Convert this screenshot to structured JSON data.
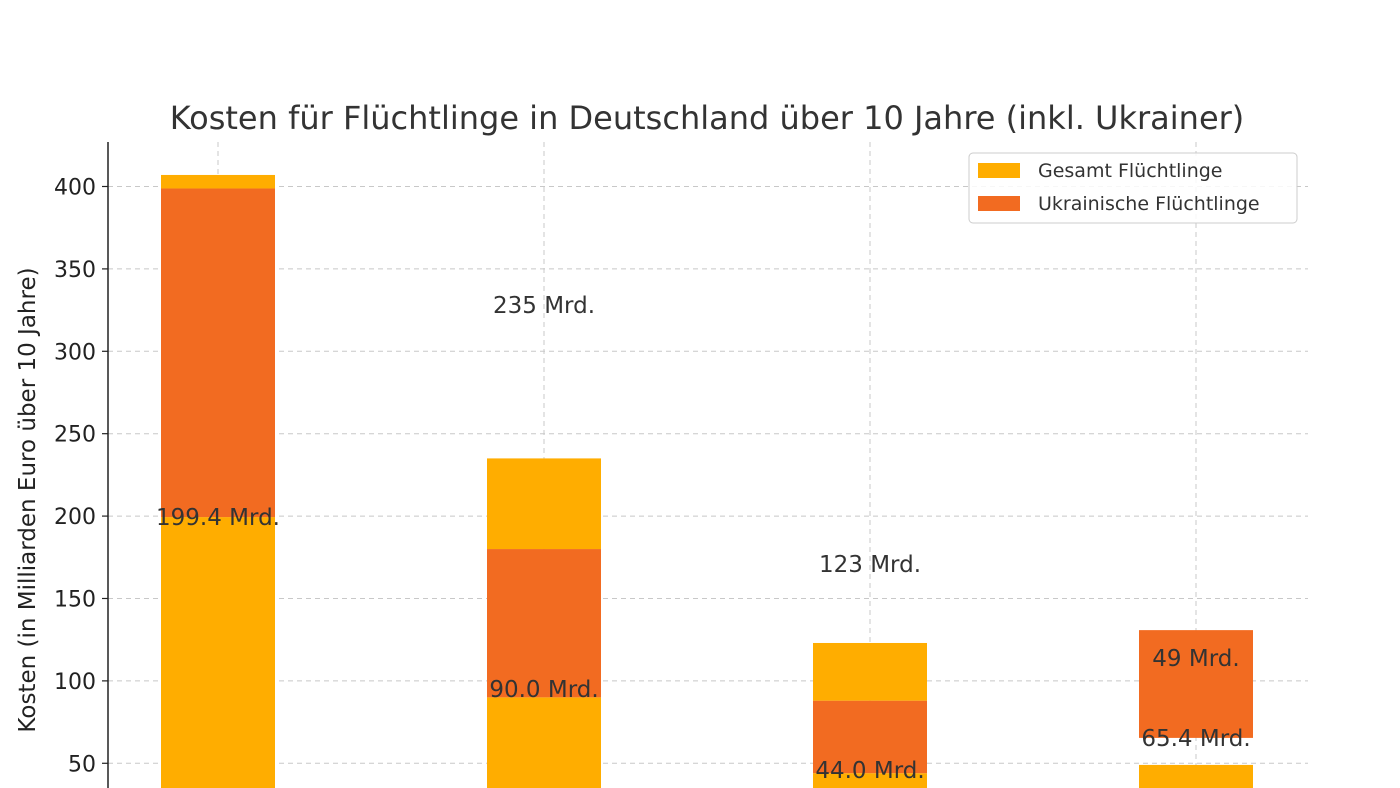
{
  "chart_data": {
    "type": "bar",
    "stacked": true,
    "title": "Kosten für Flüchtlinge in Deutschland über 10 Jahre (inkl. Ukrainer)",
    "ylabel": "Kosten (in Milliarden Euro über 10 Jahre)",
    "xlabel": "",
    "ylim": [
      35,
      427
    ],
    "yticks": [
      50,
      100,
      150,
      200,
      250,
      300,
      350,
      400
    ],
    "grid": true,
    "legend_position": "top-right",
    "series": [
      {
        "name": "Gesamt Flüchtlinge",
        "color": "#FFAD00"
      },
      {
        "name": "Ukrainische Flüchtlinge",
        "color": "#F26B21"
      }
    ],
    "bars": [
      {
        "segments": [
          {
            "series": 0,
            "from": 0,
            "to": 199.4
          },
          {
            "series": 1,
            "from": 199.4,
            "to": 398.8
          },
          {
            "series": 0,
            "from": 398.8,
            "to": 407
          }
        ]
      },
      {
        "segments": [
          {
            "series": 0,
            "from": 0,
            "to": 90
          },
          {
            "series": 1,
            "from": 90,
            "to": 180
          },
          {
            "series": 0,
            "from": 180,
            "to": 235
          }
        ]
      },
      {
        "segments": [
          {
            "series": 0,
            "from": 0,
            "to": 44
          },
          {
            "series": 1,
            "from": 44,
            "to": 88
          },
          {
            "series": 0,
            "from": 88,
            "to": 123
          }
        ]
      },
      {
        "segments": [
          {
            "series": 0,
            "from": 0,
            "to": 49
          },
          {
            "series": 1,
            "from": 65.4,
            "to": 130.8
          }
        ]
      }
    ],
    "annotations": [
      {
        "text": "199.4 Mrd.",
        "bar": 0,
        "y": 199.4
      },
      {
        "text": "235 Mrd.",
        "bar": 1,
        "y": 328
      },
      {
        "text": "90.0 Mrd.",
        "bar": 1,
        "y": 95
      },
      {
        "text": "123 Mrd.",
        "bar": 2,
        "y": 171
      },
      {
        "text": "44.0 Mrd.",
        "bar": 2,
        "y": 46
      },
      {
        "text": "49 Mrd.",
        "bar": 3,
        "y": 114
      },
      {
        "text": "65.4 Mrd.",
        "bar": 3,
        "y": 65.4
      }
    ]
  }
}
